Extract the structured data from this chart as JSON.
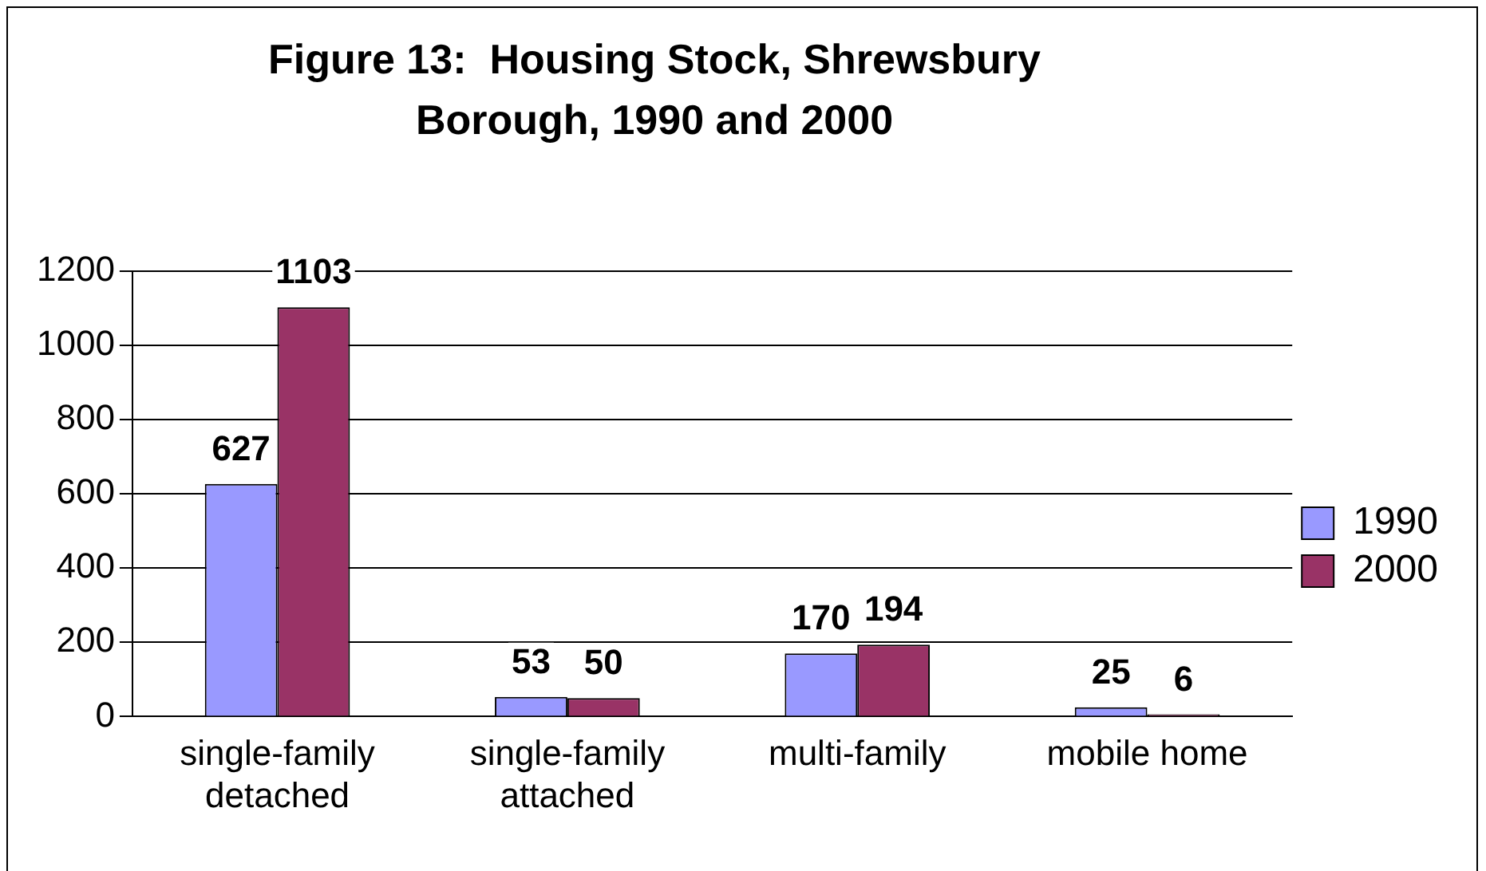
{
  "chart_data": {
    "type": "bar",
    "title": "Figure 13:  Housing Stock, Shrewsbury Borough, 1990 and 2000",
    "categories": [
      "single-family detached",
      "single-family attached",
      "multi-family",
      "mobile home"
    ],
    "series": [
      {
        "name": "1990",
        "color": "#9999ff",
        "values": [
          627,
          53,
          170,
          25
        ]
      },
      {
        "name": "2000",
        "color": "#993366",
        "values": [
          1103,
          50,
          194,
          6
        ]
      }
    ],
    "ylim": [
      0,
      1200
    ],
    "yticks": [
      0,
      200,
      400,
      600,
      800,
      1000,
      1200
    ],
    "grid": "y",
    "legend": "right",
    "data_labels": true
  }
}
